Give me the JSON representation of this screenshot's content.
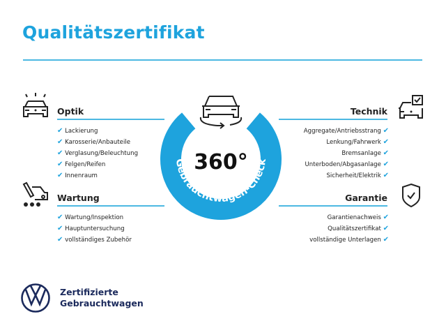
{
  "title": "Qualitätszertifikat",
  "colors": {
    "accent": "#1ea3dd",
    "brand_navy": "#1b2a5c",
    "text": "#222222"
  },
  "center": {
    "label": "360°",
    "ring_text": "Gebrauchtwagen-Check",
    "icon": "car-rotate-icon"
  },
  "sections": {
    "optik": {
      "title": "Optik",
      "icon": "car-lights-icon",
      "items": [
        "Lackierung",
        "Karosserie/Anbauteile",
        "Verglasung/Beleuchtung",
        "Felgen/Reifen",
        "Innenraum"
      ]
    },
    "wartung": {
      "title": "Wartung",
      "icon": "service-tools-icon",
      "items": [
        "Wartung/Inspektion",
        "Hauptuntersuchung",
        "vollständiges Zubehör"
      ]
    },
    "technik": {
      "title": "Technik",
      "icon": "car-checkbox-icon",
      "items": [
        "Aggregate/Antriebsstrang",
        "Lenkung/Fahrwerk",
        "Bremsanlage",
        "Unterboden/Abgasanlage",
        "Sicherheit/Elektrik"
      ]
    },
    "garantie": {
      "title": "Garantie",
      "icon": "shield-check-icon",
      "items": [
        "Garantienachweis",
        "Qualitätszertifikat",
        "vollständige Unterlagen"
      ]
    }
  },
  "check_glyph": "✔",
  "footer": {
    "logo": "VW",
    "line1": "Zertifizierte",
    "line2": "Gebrauchtwagen"
  }
}
